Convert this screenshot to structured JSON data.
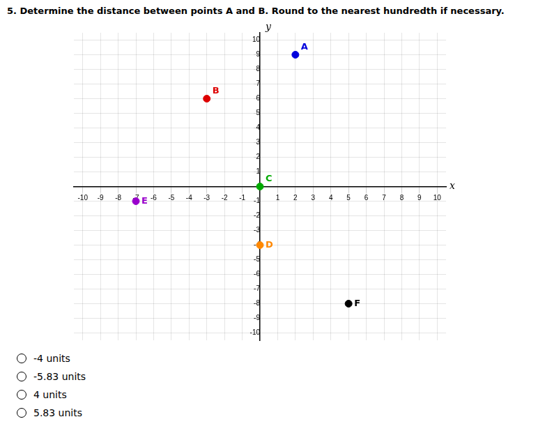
{
  "chart_data": {
    "type": "scatter",
    "title": "5. Determine the distance between points A and B. Round to the nearest hundredth if necessary.",
    "x_label": "x",
    "y_label": "y",
    "series": [
      {
        "name": "A",
        "color": "#0000dd",
        "x": [
          2
        ],
        "values": [
          9
        ]
      },
      {
        "name": "B",
        "color": "#dd0000",
        "x": [
          -3
        ],
        "values": [
          6
        ]
      },
      {
        "name": "C",
        "color": "#00aa00",
        "x": [
          0
        ],
        "values": [
          0
        ]
      },
      {
        "name": "D",
        "color": "#ff8800",
        "x": [
          0
        ],
        "values": [
          -4
        ]
      },
      {
        "name": "E",
        "color": "#9900cc",
        "x": [
          -7
        ],
        "values": [
          -1
        ]
      },
      {
        "name": "F",
        "color": "#000000",
        "x": [
          5
        ],
        "values": [
          -8
        ]
      }
    ],
    "xlim": [
      -10.5,
      10.5
    ],
    "ylim": [
      -10.5,
      10.5
    ],
    "xticks": [
      -10,
      -9,
      -8,
      -7,
      -6,
      -5,
      -4,
      -3,
      -2,
      -1,
      1,
      2,
      3,
      4,
      5,
      6,
      7,
      8,
      9,
      10
    ],
    "yticks": [
      -10,
      -9,
      -8,
      -7,
      -6,
      -5,
      -4,
      -3,
      -2,
      -1,
      1,
      2,
      3,
      4,
      5,
      6,
      7,
      8,
      9,
      10
    ],
    "grid": true,
    "annotations": [
      "-4 units",
      "-5.83 units",
      "4 units",
      "5.83 units"
    ]
  }
}
